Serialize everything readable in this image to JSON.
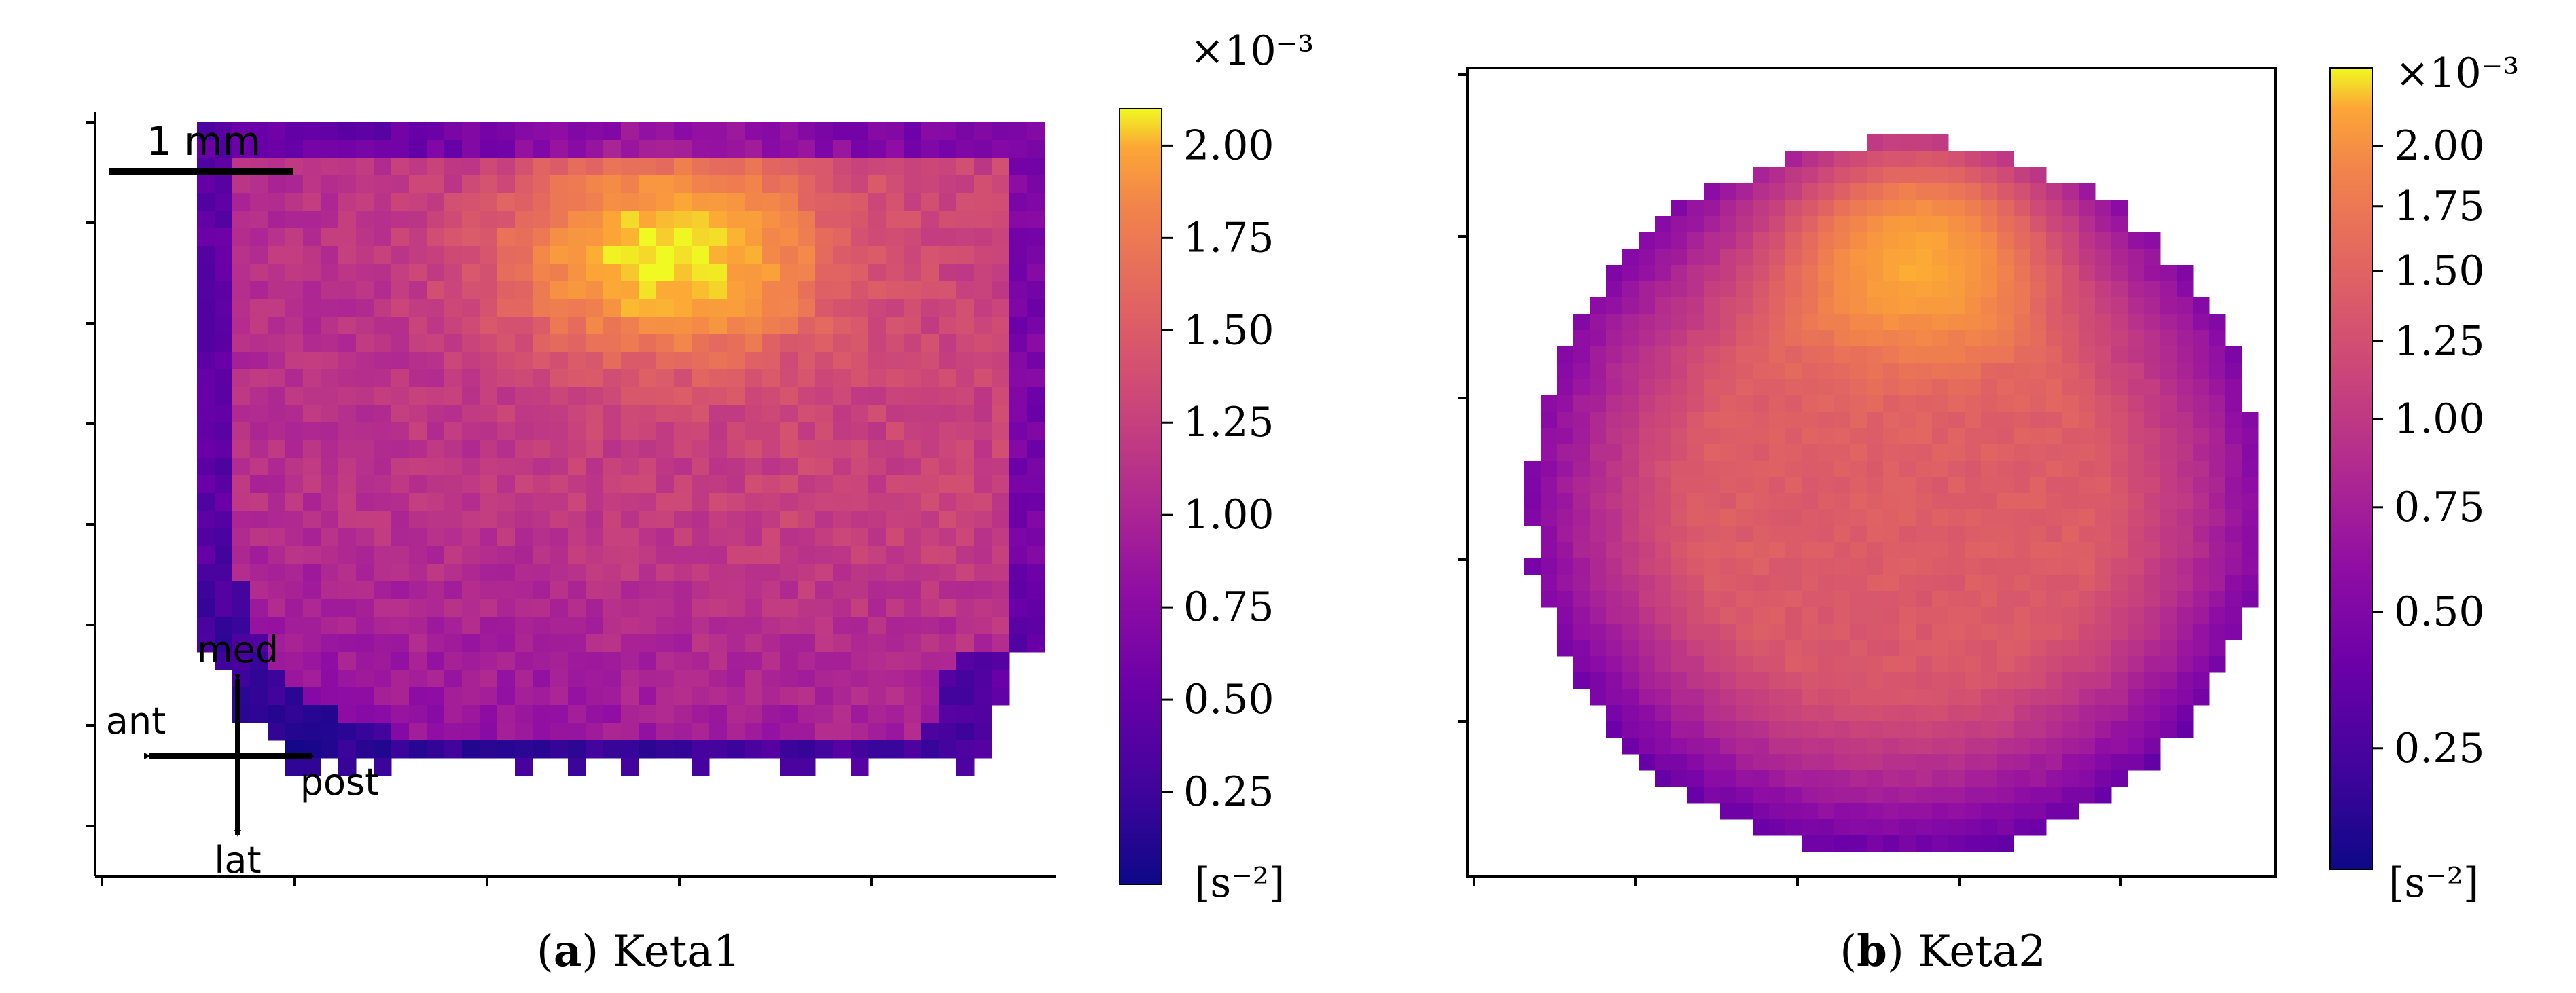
{
  "figure": {
    "caption_a_letter": "a",
    "caption_a_text": "Keta1",
    "caption_b_letter": "b",
    "caption_b_text": "Keta2"
  },
  "panel_a": {
    "scale_bar_label": "1 mm",
    "orientation": {
      "top": "med",
      "left": "ant",
      "right": "post",
      "bottom": "lat"
    }
  },
  "colormap": {
    "name": "plasma"
  },
  "chart_data": [
    {
      "type": "heatmap",
      "title": "",
      "colormap": "plasma",
      "colorbar": {
        "multiplier": "×10⁻³",
        "unit": "[s⁻²]",
        "range": [
          0.0,
          2.1
        ],
        "ticks": [
          0.25,
          0.5,
          0.75,
          1.0,
          1.25,
          1.5,
          1.75,
          2.0
        ],
        "tick_labels": [
          "0.25",
          "0.50",
          "0.75",
          "1.00",
          "1.25",
          "1.50",
          "1.75",
          "2.00"
        ],
        "scale": "linear"
      },
      "hotspot": {
        "x_rel": 0.55,
        "y_rel": 0.19,
        "value": 2.05
      },
      "notes": "Brain-section map; high values (yellow) upper center-right, purple-blue rim"
    },
    {
      "type": "heatmap",
      "title": "",
      "colormap": "plasma",
      "colorbar": {
        "multiplier": "×10⁻³",
        "unit": "[s⁻²]",
        "range": [
          0.1,
          2.35
        ],
        "ticks": [
          0.25,
          0.5,
          0.75,
          1.0,
          1.25,
          1.5,
          1.75,
          2.0
        ],
        "tick_labels": [
          "0.25",
          "0.50",
          "0.75",
          "1.00",
          "1.25",
          "1.50",
          "1.75",
          "2.00"
        ],
        "scale": "sqrt"
      },
      "hotspot": {
        "x_rel": 0.55,
        "y_rel": 0.18,
        "value": 2.2
      },
      "notes": "Rounded section; yellow peak near top center, purple rim"
    }
  ]
}
